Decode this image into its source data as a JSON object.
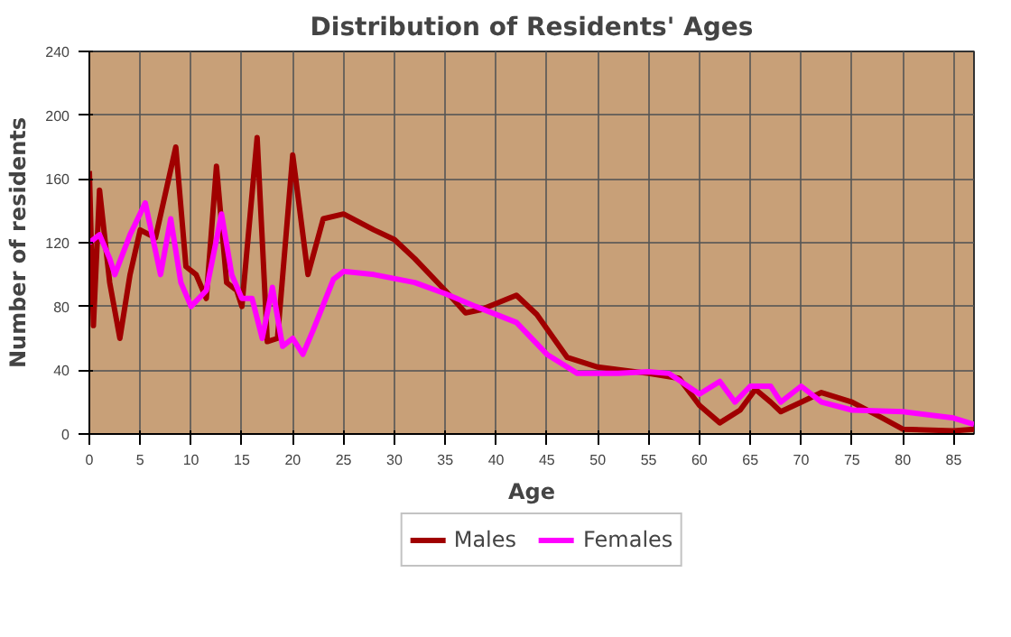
{
  "chart_data": {
    "type": "line",
    "title": "Distribution of Residents' Ages",
    "xlabel": "Age",
    "ylabel": "Number of residents",
    "xlim": [
      0,
      87
    ],
    "xticks": [
      0,
      5,
      10,
      15,
      20,
      25,
      30,
      35,
      40,
      45,
      50,
      55,
      60,
      65,
      70,
      75,
      80,
      85
    ],
    "ylim": [
      0,
      240
    ],
    "yticks": [
      0,
      40,
      80,
      120,
      160,
      200,
      240
    ],
    "grid": true,
    "legend": "bottom",
    "line_style": "solid",
    "marker": "none",
    "series": [
      {
        "name": "Males",
        "color": "#a00000",
        "x": [
          0,
          0.4,
          1,
          2,
          3,
          4,
          5,
          6.5,
          8.5,
          9.5,
          10.5,
          11.5,
          12.5,
          13.5,
          14.5,
          15,
          16.5,
          17.5,
          18.5,
          20,
          21.5,
          23,
          25,
          28,
          30,
          32,
          35,
          37,
          38.5,
          42,
          44,
          47,
          50,
          55,
          58,
          60,
          62,
          64,
          65.5,
          67,
          68,
          70,
          72,
          75,
          78,
          80,
          85,
          87
        ],
        "values": [
          165,
          68,
          153,
          95,
          60,
          100,
          128,
          123,
          180,
          105,
          100,
          85,
          168,
          95,
          90,
          80,
          186,
          58,
          60,
          175,
          100,
          135,
          138,
          128,
          122,
          110,
          90,
          76,
          78,
          87,
          75,
          48,
          42,
          38,
          35,
          18,
          7,
          15,
          28,
          20,
          14,
          20,
          26,
          20,
          10,
          3,
          2,
          3
        ]
      },
      {
        "name": "Females",
        "color": "#ff00ff",
        "x": [
          0,
          1,
          2,
          2.5,
          4,
          5.5,
          7,
          8,
          9,
          10,
          11.5,
          13,
          14,
          15,
          16,
          17,
          18,
          19,
          20,
          21,
          22,
          24,
          25,
          28,
          32,
          35,
          38,
          42,
          45,
          48,
          52,
          55,
          57,
          60,
          62,
          63.5,
          65,
          67,
          68,
          70,
          72,
          75,
          80,
          85,
          87
        ],
        "values": [
          120,
          125,
          110,
          100,
          125,
          145,
          100,
          135,
          95,
          80,
          90,
          138,
          100,
          85,
          85,
          60,
          92,
          55,
          60,
          50,
          65,
          97,
          102,
          100,
          95,
          88,
          80,
          70,
          50,
          38,
          38,
          39,
          38,
          25,
          33,
          20,
          30,
          30,
          20,
          30,
          20,
          15,
          14,
          10,
          6
        ]
      }
    ]
  }
}
